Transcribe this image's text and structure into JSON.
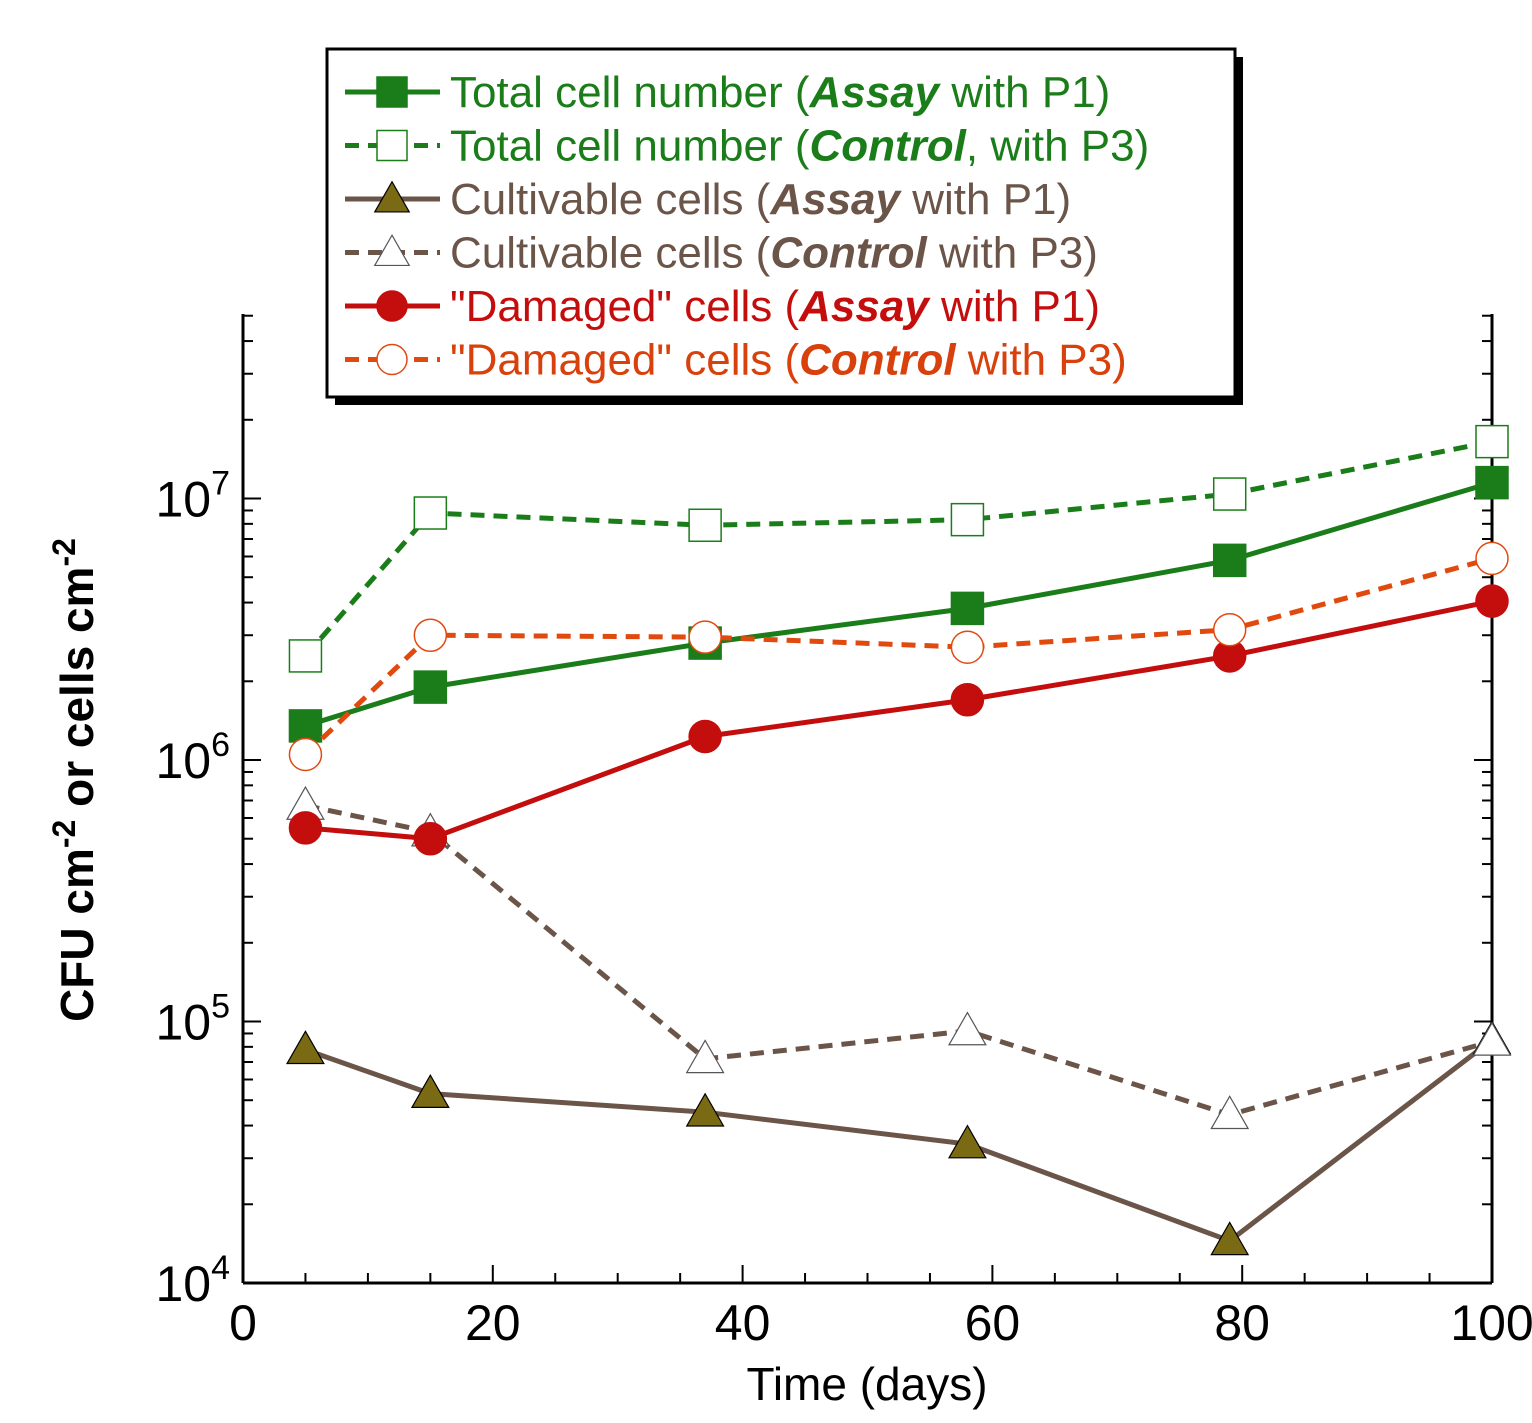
{
  "chart_data": {
    "type": "line",
    "xlabel": "Time (days)",
    "ylabel": "CFU cm-2 or cells cm-2",
    "xlim": [
      0,
      100
    ],
    "ylim": [
      10000,
      50000000
    ],
    "yscale": "log",
    "x_ticks": [
      0,
      20,
      40,
      60,
      80,
      100
    ],
    "y_ticks": [
      {
        "value": 10000,
        "base": "10",
        "exp": "4"
      },
      {
        "value": 100000,
        "base": "10",
        "exp": "5"
      },
      {
        "value": 1000000,
        "base": "10",
        "exp": "6"
      },
      {
        "value": 10000000,
        "base": "10",
        "exp": "7"
      }
    ],
    "grid": false,
    "legend_position": "top-center",
    "series": [
      {
        "label_parts": [
          {
            "text": "Total cell number (",
            "style": "normal"
          },
          {
            "text": "Assay",
            "style": "bold-italic"
          },
          {
            "text": " with P1)",
            "style": "normal"
          }
        ],
        "color": "#1a7d1a",
        "text_color": "#1a7d1a",
        "marker": "square",
        "filled": true,
        "dashed": false,
        "x": [
          5,
          15,
          37,
          58,
          79,
          100
        ],
        "y": [
          1350000,
          1900000,
          2800000,
          3800000,
          5800000,
          11500000
        ]
      },
      {
        "label_parts": [
          {
            "text": "Total cell number (",
            "style": "normal"
          },
          {
            "text": "Control",
            "style": "bold-italic"
          },
          {
            "text": ", with P3)",
            "style": "normal"
          }
        ],
        "color": "#1a7d1a",
        "text_color": "#1a7d1a",
        "marker": "square",
        "filled": false,
        "dashed": true,
        "x": [
          5,
          15,
          37,
          58,
          79,
          100
        ],
        "y": [
          2500000,
          8800000,
          7900000,
          8300000,
          10400000,
          16500000
        ]
      },
      {
        "label_parts": [
          {
            "text": "Cultivable cells (",
            "style": "normal"
          },
          {
            "text": "Assay",
            "style": "bold-italic"
          },
          {
            "text": " with P1)",
            "style": "normal"
          }
        ],
        "color": "#6b5448",
        "text_color": "#6b5448",
        "marker": "triangle",
        "marker_fill": "#7a6a14",
        "filled": true,
        "dashed": false,
        "x": [
          5,
          15,
          37,
          58,
          79,
          100
        ],
        "y": [
          78000,
          53000,
          45000,
          34000,
          14500,
          85000
        ]
      },
      {
        "label_parts": [
          {
            "text": "Cultivable cells (",
            "style": "normal"
          },
          {
            "text": "Control",
            "style": "bold-italic"
          },
          {
            "text": " with P3)",
            "style": "normal"
          }
        ],
        "color": "#6b5448",
        "text_color": "#6b5448",
        "marker": "triangle",
        "filled": false,
        "dashed": true,
        "x": [
          5,
          15,
          37,
          58,
          79,
          100
        ],
        "y": [
          670000,
          530000,
          72000,
          92000,
          44000,
          84000
        ]
      },
      {
        "label_parts": [
          {
            "text": "\"Damaged\" cells (",
            "style": "normal"
          },
          {
            "text": "Assay",
            "style": "bold-italic"
          },
          {
            "text": " with P1)",
            "style": "normal"
          }
        ],
        "color": "#c40d0d",
        "text_color": "#c40d0d",
        "marker": "circle",
        "filled": true,
        "dashed": false,
        "x": [
          5,
          15,
          37,
          58,
          79,
          100
        ],
        "y": [
          550000,
          500000,
          1230000,
          1700000,
          2500000,
          4050000
        ]
      },
      {
        "label_parts": [
          {
            "text": "\"Damaged\" cells (",
            "style": "normal"
          },
          {
            "text": "Control",
            "style": "bold-italic"
          },
          {
            "text": " with P3)",
            "style": "normal"
          }
        ],
        "color": "#e04a0f",
        "text_color": "#d9410c",
        "marker": "circle",
        "filled": false,
        "dashed": true,
        "x": [
          5,
          15,
          37,
          58,
          79,
          100
        ],
        "y": [
          1050000,
          3000000,
          2950000,
          2700000,
          3150000,
          5900000
        ]
      }
    ]
  }
}
